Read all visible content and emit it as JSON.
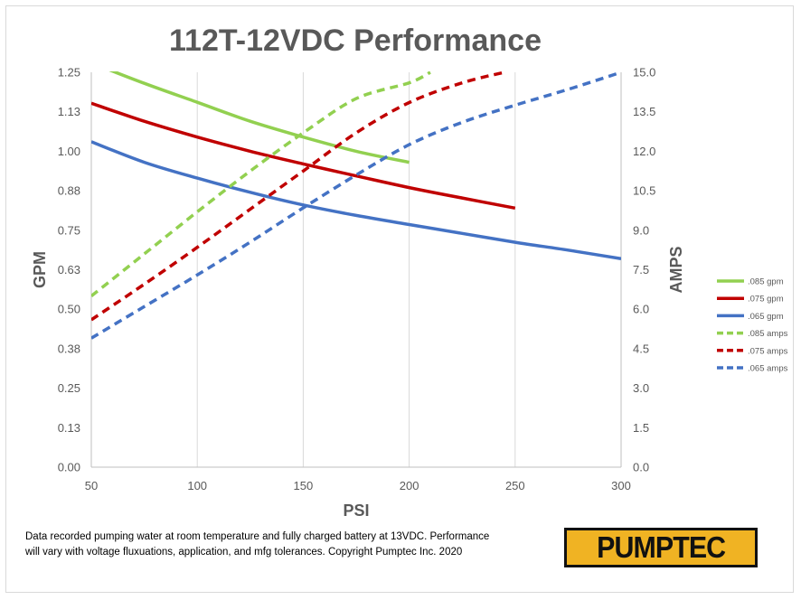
{
  "chart_data": {
    "type": "line",
    "title": "112T-12VDC Performance",
    "xlabel": "PSI",
    "ylabel": "GPM",
    "y2label": "AMPS",
    "xlim": [
      50,
      300
    ],
    "ylim": [
      0,
      1.25
    ],
    "y2lim": [
      0,
      15
    ],
    "x_ticks": [
      "50",
      "100",
      "150",
      "200",
      "250",
      "300"
    ],
    "y_ticks": [
      "0.00",
      "0.13",
      "0.25",
      "0.38",
      "0.50",
      "0.63",
      "0.75",
      "0.88",
      "1.00",
      "1.13",
      "1.25"
    ],
    "y2_ticks": [
      "0.0",
      "1.5",
      "3.0",
      "4.5",
      "6.0",
      "7.5",
      "9.0",
      "10.5",
      "12.0",
      "13.5",
      "15.0"
    ],
    "grid": "vertical",
    "legend_position": "right",
    "series": [
      {
        "name": ".085 gpm",
        "axis": "left",
        "style": "solid",
        "color": "#92d050",
        "x": [
          50,
          75,
          100,
          125,
          150,
          175,
          200
        ],
        "y": [
          1.28,
          1.215,
          1.155,
          1.095,
          1.045,
          1.0,
          0.965
        ]
      },
      {
        "name": ".075 gpm",
        "axis": "left",
        "style": "solid",
        "color": "#c00000",
        "x": [
          50,
          75,
          100,
          125,
          150,
          175,
          200,
          225,
          250
        ],
        "y": [
          1.152,
          1.095,
          1.045,
          1.0,
          0.96,
          0.922,
          0.885,
          0.852,
          0.82
        ]
      },
      {
        "name": ".065 gpm",
        "axis": "left",
        "style": "solid",
        "color": "#4472c4",
        "x": [
          50,
          75,
          100,
          125,
          150,
          175,
          200,
          225,
          250,
          275,
          300
        ],
        "y": [
          1.03,
          0.965,
          0.915,
          0.87,
          0.83,
          0.797,
          0.768,
          0.74,
          0.712,
          0.687,
          0.66
        ]
      },
      {
        "name": ".085 amps",
        "axis": "right",
        "style": "dashed",
        "color": "#92d050",
        "x": [
          50,
          75,
          100,
          125,
          150,
          175,
          200,
          210
        ],
        "y": [
          6.5,
          8.1,
          9.7,
          11.25,
          12.7,
          14.0,
          14.6,
          15.0
        ]
      },
      {
        "name": ".075 amps",
        "axis": "right",
        "style": "dashed",
        "color": "#c00000",
        "x": [
          50,
          75,
          100,
          125,
          150,
          175,
          200,
          225,
          245
        ],
        "y": [
          5.6,
          6.95,
          8.35,
          9.8,
          11.25,
          12.7,
          13.85,
          14.6,
          15.0
        ]
      },
      {
        "name": ".065 amps",
        "axis": "right",
        "style": "dashed",
        "color": "#4472c4",
        "x": [
          50,
          75,
          100,
          125,
          150,
          175,
          200,
          225,
          250,
          275,
          300
        ],
        "y": [
          4.9,
          6.1,
          7.3,
          8.55,
          9.85,
          11.1,
          12.25,
          13.1,
          13.75,
          14.35,
          15.0
        ]
      }
    ]
  },
  "footnote": "Data recorded pumping water at room temperature and fully charged battery at 13VDC.  Performance will vary with voltage fluxuations, application, and mfg tolerances.  Copyright Pumptec Inc. 2020",
  "logo": {
    "text": "PUMPTEC",
    "background": "#f0b323",
    "color": "#111111"
  }
}
